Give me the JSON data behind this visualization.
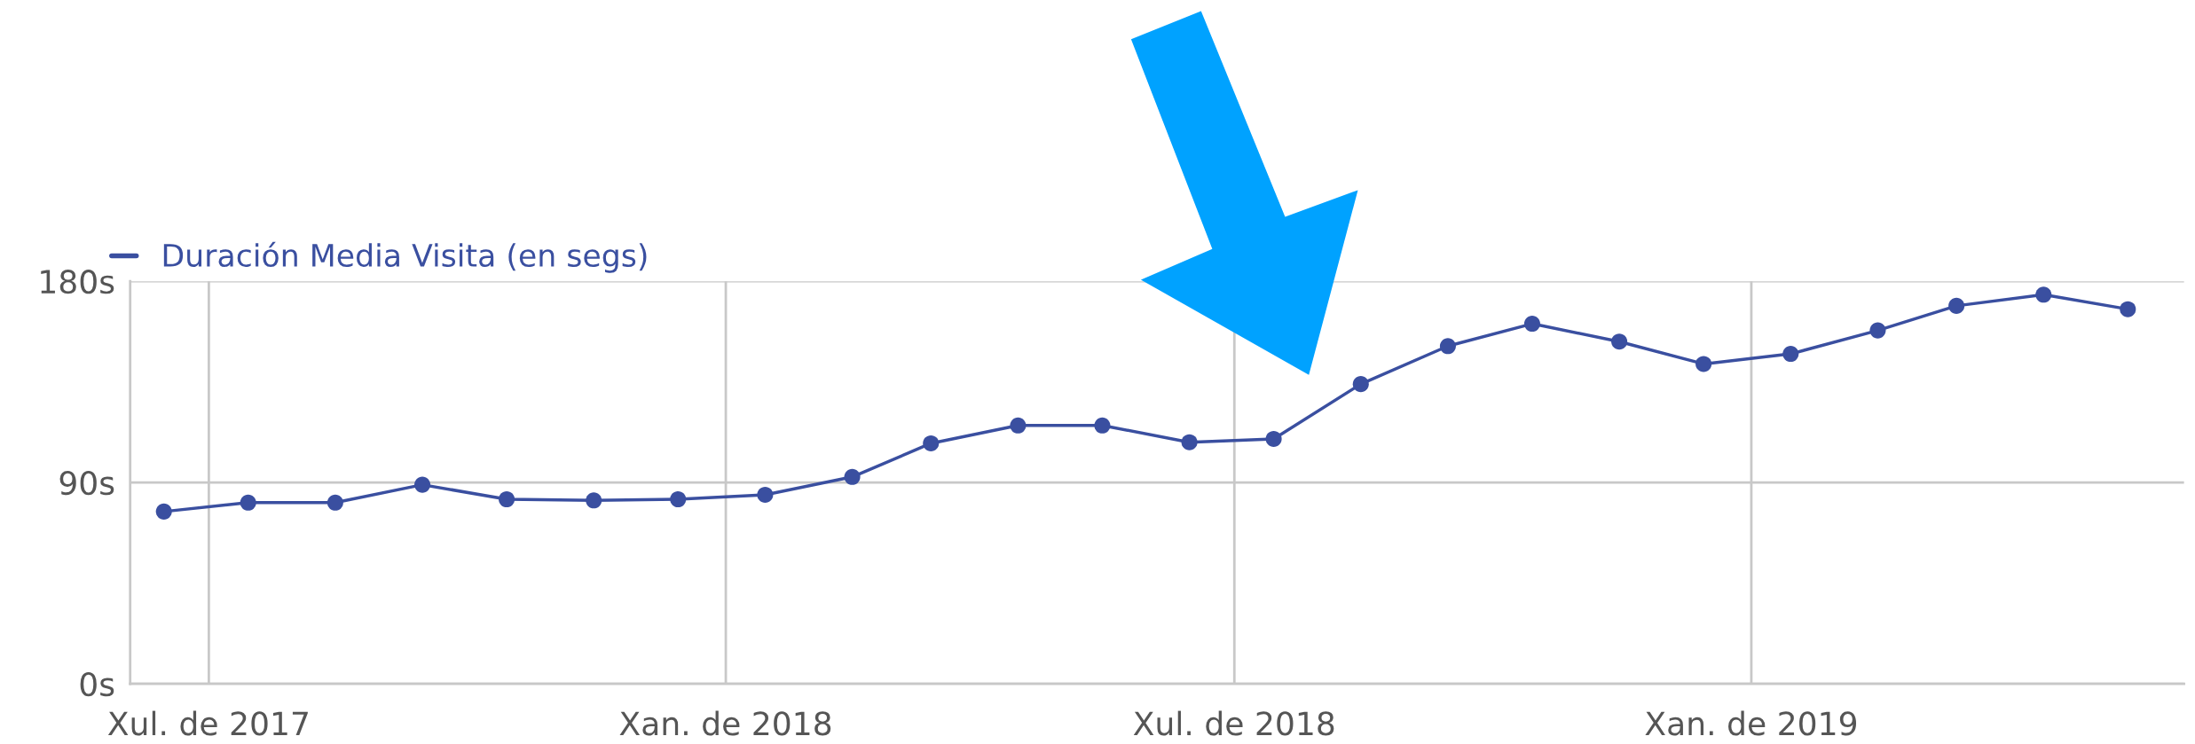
{
  "chart_data": {
    "type": "line",
    "x": [
      "2017-06-15",
      "2017-07-15",
      "2017-08-15",
      "2017-09-15",
      "2017-10-15",
      "2017-11-15",
      "2017-12-15",
      "2018-01-15",
      "2018-02-15",
      "2018-03-15",
      "2018-04-15",
      "2018-05-15",
      "2018-06-15",
      "2018-07-15",
      "2018-08-15",
      "2018-09-15",
      "2018-10-15",
      "2018-11-15",
      "2018-12-15",
      "2019-01-15",
      "2019-02-15",
      "2019-03-15",
      "2019-04-15",
      "2019-05-15"
    ],
    "series": [
      {
        "name": "Duración Media Visita (en segs)",
        "color": "#3a4fa0",
        "values": [
          77,
          81,
          81,
          89,
          82.5,
          82,
          82.5,
          84.5,
          92.5,
          107.5,
          115.5,
          115.5,
          108,
          109.5,
          134,
          151,
          161,
          153,
          143,
          147.5,
          158,
          169,
          174,
          167.5
        ]
      }
    ],
    "xlim": [
      "2017-06-03",
      "2019-06-04"
    ],
    "xticks": [
      {
        "value": "2017-07-01",
        "label": "Xul. de 2017"
      },
      {
        "value": "2018-01-01",
        "label": "Xan. de 2018"
      },
      {
        "value": "2018-07-01",
        "label": "Xul. de 2018"
      },
      {
        "value": "2019-01-01",
        "label": "Xan. de 2019"
      }
    ],
    "ylim": [
      0,
      180
    ],
    "yticks": [
      {
        "value": 0,
        "label": "0s"
      },
      {
        "value": 90,
        "label": "90s"
      },
      {
        "value": 180,
        "label": "180s"
      }
    ],
    "grid": true,
    "legend": "top left",
    "marker": "circle",
    "line_style": "solid"
  }
}
